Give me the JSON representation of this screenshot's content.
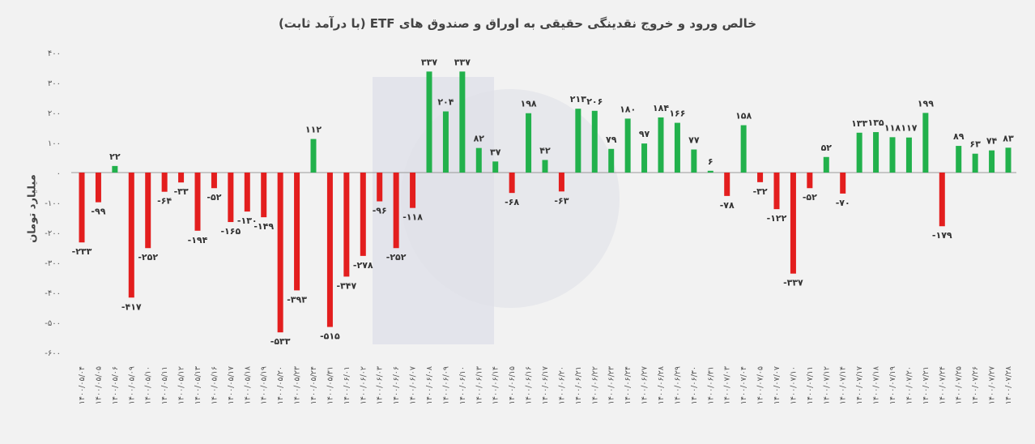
{
  "chart_data": {
    "type": "bar",
    "title": "خالص ورود و خروج نقدینگی حقیقی به اوراق و صندوق های ETF (با درآمد ثابت)",
    "xlabel": "",
    "ylabel": "میلیارد تومان",
    "ylim": [
      -600,
      400
    ],
    "yticks": [
      "۴۰۰",
      "۳۰۰",
      "۲۰۰",
      "۱۰۰",
      "۰",
      "-۱۰۰",
      "-۲۰۰",
      "-۳۰۰",
      "-۴۰۰",
      "-۵۰۰",
      "-۶۰۰"
    ],
    "ytick_values": [
      400,
      300,
      200,
      100,
      0,
      -100,
      -200,
      -300,
      -400,
      -500,
      -600
    ],
    "grid": false,
    "colors": {
      "positive": "#22b14c",
      "negative": "#e31e1e"
    },
    "categories": [
      "۱۴۰۰/۰۵/۰۴",
      "۱۴۰۰/۰۵/۰۵",
      "۱۴۰۰/۰۵/۰۶",
      "۱۴۰۰/۰۵/۰۹",
      "۱۴۰۰/۰۵/۱۰",
      "۱۴۰۰/۰۵/۱۱",
      "۱۴۰۰/۰۵/۱۲",
      "۱۴۰۰/۰۵/۱۳",
      "۱۴۰۰/۰۵/۱۶",
      "۱۴۰۰/۰۵/۱۷",
      "۱۴۰۰/۰۵/۱۸",
      "۱۴۰۰/۰۵/۱۹",
      "۱۴۰۰/۰۵/۲۰",
      "۱۴۰۰/۰۵/۲۳",
      "۱۴۰۰/۰۵/۲۴",
      "۱۴۰۰/۰۵/۳۱",
      "۱۴۰۰/۰۶/۰۱",
      "۱۴۰۰/۰۶/۰۲",
      "۱۴۰۰/۰۶/۰۳",
      "۱۴۰۰/۰۶/۰۶",
      "۱۴۰۰/۰۶/۰۷",
      "۱۴۰۰/۰۶/۰۸",
      "۱۴۰۰/۰۶/۰۹",
      "۱۴۰۰/۰۶/۱۰",
      "۱۴۰۰/۰۶/۱۳",
      "۱۴۰۰/۰۶/۱۴",
      "۱۴۰۰/۰۶/۱۵",
      "۱۴۰۰/۰۶/۱۶",
      "۱۴۰۰/۰۶/۱۷",
      "۱۴۰۰/۰۶/۲۰",
      "۱۴۰۰/۰۶/۲۱",
      "۱۴۰۰/۰۶/۲۲",
      "۱۴۰۰/۰۶/۲۳",
      "۱۴۰۰/۰۶/۲۴",
      "۱۴۰۰/۰۶/۲۷",
      "۱۴۰۰/۰۶/۲۸",
      "۱۴۰۰/۰۶/۲۹",
      "۱۴۰۰/۰۶/۳۰",
      "۱۴۰۰/۰۶/۳۱",
      "۱۴۰۰/۰۷/۰۳",
      "۱۴۰۰/۰۷/۰۴",
      "۱۴۰۰/۰۷/۰۵",
      "۱۴۰۰/۰۷/۰۷",
      "۱۴۰۰/۰۷/۱۰",
      "۱۴۰۰/۰۷/۱۱",
      "۱۴۰۰/۰۷/۱۲",
      "۱۴۰۰/۰۷/۱۴",
      "۱۴۰۰/۰۷/۱۷",
      "۱۴۰۰/۰۷/۱۸",
      "۱۴۰۰/۰۷/۱۹",
      "۱۴۰۰/۰۷/۲۰",
      "۱۴۰۰/۰۷/۲۱",
      "۱۴۰۰/۰۷/۲۴",
      "۱۴۰۰/۰۷/۲۵",
      "۱۴۰۰/۰۷/۲۶",
      "۱۴۰۰/۰۷/۲۷",
      "۱۴۰۰/۰۷/۲۸"
    ],
    "values": [
      -233,
      -99,
      22,
      -417,
      -252,
      -64,
      -33,
      -194,
      -52,
      -165,
      -130,
      -149,
      -533,
      -393,
      112,
      -515,
      -347,
      -278,
      -96,
      -252,
      -118,
      337,
      204,
      337,
      82,
      37,
      -68,
      198,
      42,
      -63,
      213,
      206,
      79,
      180,
      97,
      184,
      166,
      77,
      6,
      -78,
      158,
      -32,
      -122,
      -337,
      -52,
      52,
      -70,
      133,
      135,
      118,
      117,
      199,
      -179,
      89,
      63,
      74,
      83
    ]
  }
}
